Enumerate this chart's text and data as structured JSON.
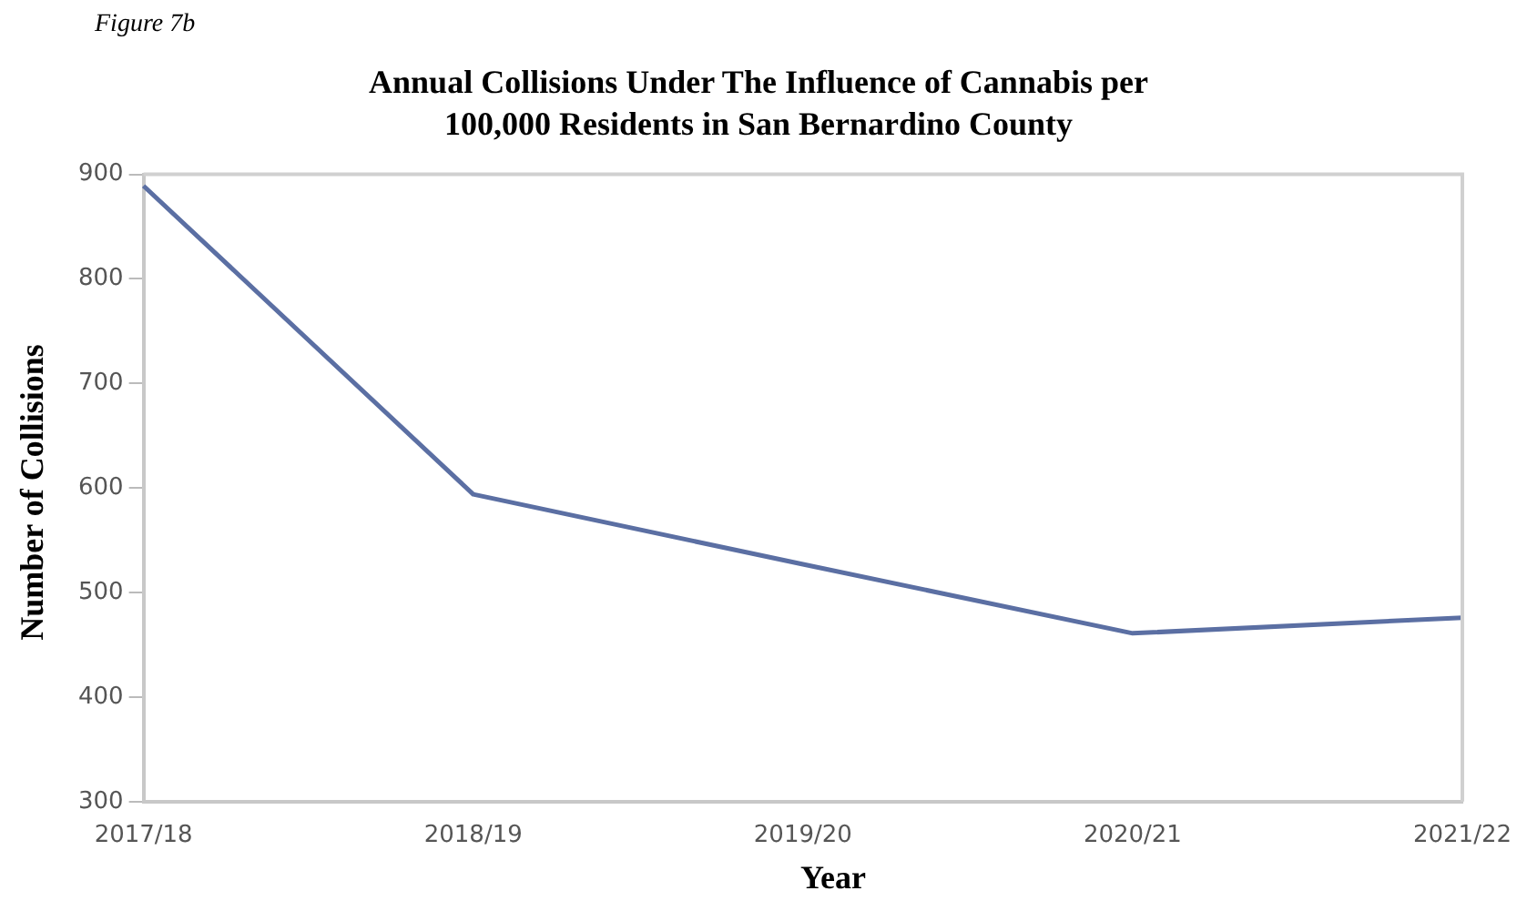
{
  "chart_data": {
    "type": "line",
    "title": "Annual Collisions Under The Influence of Cannabis per\n100,000 Residents in San Bernardino County",
    "xlabel": "Year",
    "ylabel": "Number of Collisions",
    "annotations": [
      "Figure 7b"
    ],
    "categories": [
      "2017/18",
      "2018/19",
      "2019/20",
      "2020/21",
      "2021/22"
    ],
    "series": [
      {
        "color": "#5b6fa3",
        "values": [
          889,
          594,
          527,
          461,
          476
        ]
      }
    ],
    "ylim": [
      300,
      900
    ],
    "yticks": [
      300,
      400,
      500,
      600,
      700,
      800,
      900
    ],
    "grid": false,
    "legend": false,
    "marker": "none",
    "line_style": "solid"
  }
}
